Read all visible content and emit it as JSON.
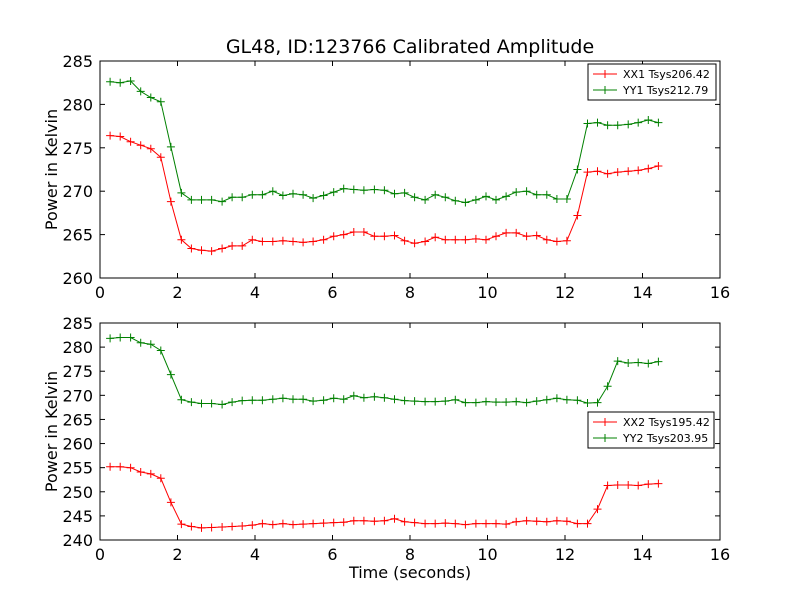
{
  "chart_data": [
    {
      "type": "line",
      "title": "GL48, ID:123766 Calibrated Amplitude",
      "xlabel": "",
      "ylabel": "Power in Kelvin",
      "xlim": [
        0,
        16
      ],
      "ylim": [
        260,
        285
      ],
      "xticks": [
        0,
        2,
        4,
        6,
        8,
        10,
        12,
        14,
        16
      ],
      "yticks": [
        260,
        265,
        270,
        275,
        280,
        285
      ],
      "grid": false,
      "legend_position": "upper right",
      "x": [
        0.26,
        0.52,
        0.79,
        1.05,
        1.31,
        1.57,
        1.83,
        2.1,
        2.36,
        2.62,
        2.88,
        3.15,
        3.41,
        3.67,
        3.93,
        4.19,
        4.46,
        4.72,
        4.98,
        5.24,
        5.5,
        5.77,
        6.03,
        6.29,
        6.55,
        6.81,
        7.08,
        7.34,
        7.6,
        7.86,
        8.12,
        8.39,
        8.65,
        8.91,
        9.17,
        9.43,
        9.7,
        9.96,
        10.22,
        10.48,
        10.74,
        11.01,
        11.27,
        11.53,
        11.79,
        12.05,
        12.32,
        12.58,
        12.84,
        13.1,
        13.36,
        13.63,
        13.89,
        14.15,
        14.41
      ],
      "series": [
        {
          "name": "XX1 Tsys206.42",
          "color": "#ff0000",
          "values": [
            276.4,
            276.3,
            275.7,
            275.3,
            274.9,
            273.9,
            268.8,
            264.4,
            263.4,
            263.2,
            263.1,
            263.4,
            263.7,
            263.7,
            264.4,
            264.2,
            264.2,
            264.3,
            264.2,
            264.1,
            264.2,
            264.4,
            264.8,
            265.0,
            265.3,
            265.3,
            264.8,
            264.8,
            264.9,
            264.3,
            264.0,
            264.2,
            264.7,
            264.4,
            264.4,
            264.4,
            264.5,
            264.4,
            264.8,
            265.2,
            265.2,
            264.8,
            264.9,
            264.4,
            264.2,
            264.3,
            267.2,
            272.2,
            272.3,
            272.0,
            272.2,
            272.3,
            272.4,
            272.6,
            272.9
          ]
        },
        {
          "name": "YY1 Tsys212.79",
          "color": "#008000",
          "values": [
            282.6,
            282.5,
            282.7,
            281.5,
            280.8,
            280.3,
            275.1,
            269.8,
            269.0,
            269.0,
            269.0,
            268.8,
            269.3,
            269.3,
            269.6,
            269.6,
            270.0,
            269.5,
            269.7,
            269.6,
            269.2,
            269.5,
            269.9,
            270.3,
            270.2,
            270.1,
            270.2,
            270.1,
            269.7,
            269.8,
            269.3,
            269.0,
            269.6,
            269.3,
            268.9,
            268.7,
            269.0,
            269.4,
            269.0,
            269.4,
            269.9,
            270.0,
            269.6,
            269.6,
            269.1,
            269.1,
            272.5,
            277.8,
            277.9,
            277.6,
            277.6,
            277.7,
            277.9,
            278.2,
            277.9
          ]
        }
      ]
    },
    {
      "type": "line",
      "title": "",
      "xlabel": "Time (seconds)",
      "ylabel": "Power in Kelvin",
      "xlim": [
        0,
        16
      ],
      "ylim": [
        240,
        285
      ],
      "xticks": [
        0,
        2,
        4,
        6,
        8,
        10,
        12,
        14,
        16
      ],
      "yticks": [
        240,
        245,
        250,
        255,
        260,
        265,
        270,
        275,
        280,
        285
      ],
      "grid": false,
      "legend_position": "center right",
      "x": [
        0.26,
        0.52,
        0.79,
        1.05,
        1.31,
        1.57,
        1.83,
        2.1,
        2.36,
        2.62,
        2.88,
        3.15,
        3.41,
        3.67,
        3.93,
        4.19,
        4.46,
        4.72,
        4.98,
        5.24,
        5.5,
        5.77,
        6.03,
        6.29,
        6.55,
        6.81,
        7.08,
        7.34,
        7.6,
        7.86,
        8.12,
        8.39,
        8.65,
        8.91,
        9.17,
        9.43,
        9.7,
        9.96,
        10.22,
        10.48,
        10.74,
        11.01,
        11.27,
        11.53,
        11.79,
        12.05,
        12.32,
        12.58,
        12.84,
        13.1,
        13.36,
        13.63,
        13.89,
        14.15,
        14.41
      ],
      "series": [
        {
          "name": "XX2 Tsys195.42",
          "color": "#ff0000",
          "values": [
            255.2,
            255.2,
            255.0,
            254.1,
            253.7,
            252.8,
            247.8,
            243.3,
            242.8,
            242.5,
            242.6,
            242.7,
            242.8,
            242.9,
            243.1,
            243.4,
            243.2,
            243.4,
            243.2,
            243.3,
            243.4,
            243.5,
            243.6,
            243.7,
            244.0,
            244.0,
            243.9,
            244.0,
            244.4,
            243.8,
            243.6,
            243.4,
            243.4,
            243.5,
            243.4,
            243.2,
            243.4,
            243.4,
            243.4,
            243.3,
            243.8,
            244.0,
            243.9,
            243.8,
            244.0,
            243.9,
            243.4,
            243.4,
            246.4,
            251.3,
            251.4,
            251.4,
            251.3,
            251.6,
            251.7
          ]
        },
        {
          "name": "YY2 Tsys203.95",
          "color": "#008000",
          "values": [
            281.8,
            282.0,
            282.0,
            280.9,
            280.6,
            279.3,
            274.3,
            269.1,
            268.6,
            268.3,
            268.3,
            268.1,
            268.6,
            268.9,
            269.0,
            269.0,
            269.2,
            269.4,
            269.2,
            269.2,
            268.8,
            269.0,
            269.4,
            269.2,
            269.9,
            269.5,
            269.7,
            269.5,
            269.2,
            268.9,
            268.8,
            268.7,
            268.7,
            268.8,
            269.1,
            268.5,
            268.5,
            268.7,
            268.6,
            268.6,
            268.7,
            268.5,
            268.8,
            269.1,
            269.4,
            269.1,
            269.0,
            268.4,
            268.5,
            271.9,
            277.1,
            276.7,
            276.8,
            276.6,
            277.0
          ]
        }
      ]
    }
  ]
}
